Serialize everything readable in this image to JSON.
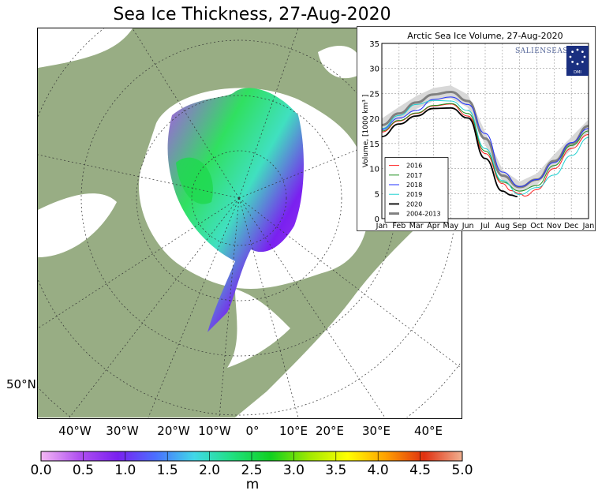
{
  "title": "Sea Ice Thickness, 27-Aug-2020",
  "map": {
    "longitude_labels": [
      "40°W",
      "30°W",
      "20°W",
      "10°W",
      "0°",
      "10°E",
      "20°E",
      "30°E",
      "40°E"
    ],
    "latitude_label": "50°N",
    "colors": {
      "land": "#98ad84",
      "ocean": "#ffffff"
    }
  },
  "colorbar": {
    "ticks": [
      "0.0",
      "0.5",
      "1.0",
      "1.5",
      "2.0",
      "2.5",
      "3.0",
      "3.5",
      "4.0",
      "4.5",
      "5.0"
    ],
    "unit": "m",
    "range": [
      0,
      5
    ],
    "stops": [
      "#f4b8f4",
      "#b050f0",
      "#7a20f0",
      "#4a70ff",
      "#40d8e8",
      "#20e080",
      "#10d020",
      "#a0e800",
      "#ffff00",
      "#ffa000",
      "#e03010",
      "#f0b090"
    ]
  },
  "logos": {
    "salienseas": "SALIENSEAS",
    "dmi": "DMI"
  },
  "chart_data": {
    "type": "line",
    "title": "Arctic Sea Ice Volume, 27-Aug-2020",
    "ylabel": "Volume, [1000 km³ ]",
    "xlabel": "",
    "ylim": [
      0,
      35
    ],
    "yticks": [
      "0",
      "5",
      "10",
      "15",
      "20",
      "25",
      "30",
      "35"
    ],
    "categories": [
      "Jan",
      "Feb",
      "Mar",
      "Apr",
      "May",
      "Jun",
      "Jul",
      "Aug",
      "Sep",
      "Oct",
      "Nov",
      "Dec",
      "Jan"
    ],
    "grid": true,
    "legend_position": "bottom-left",
    "x_month_positions": [
      0,
      1,
      2,
      3,
      4,
      5,
      6,
      7,
      8,
      9,
      10,
      11,
      12
    ],
    "band_2004_2013": {
      "lower": [
        17.4,
        19.7,
        21.9,
        23.5,
        24.0,
        22.2,
        14.7,
        7.4,
        5.2,
        6.7,
        10.3,
        13.8,
        17.3
      ],
      "upper": [
        20.0,
        22.3,
        24.5,
        26.1,
        26.6,
        24.8,
        17.3,
        9.8,
        7.4,
        9.0,
        12.8,
        16.3,
        19.8
      ]
    },
    "series": [
      {
        "name": "2016",
        "color": "#ff2020",
        "width": 1,
        "x": [
          0,
          1,
          2,
          3,
          4,
          5,
          6,
          7,
          7.5,
          8,
          8.3,
          9,
          10,
          11,
          12
        ],
        "values": [
          17.3,
          19.5,
          21,
          22.5,
          22.9,
          20.5,
          13,
          7,
          5.6,
          5,
          4.5,
          5.8,
          10,
          14,
          16.8
        ]
      },
      {
        "name": "2017",
        "color": "#209020",
        "width": 1,
        "x": [
          0,
          1,
          2,
          3,
          4,
          5,
          6,
          7,
          8,
          9,
          10,
          11,
          12
        ],
        "values": [
          17.5,
          19.6,
          21.1,
          22.6,
          23,
          21,
          13.5,
          7.3,
          5.5,
          6.6,
          10.6,
          14.6,
          17.5
        ]
      },
      {
        "name": "2018",
        "color": "#2030ff",
        "width": 1,
        "x": [
          0,
          1,
          2,
          3,
          4,
          5,
          6,
          7,
          8,
          9,
          10,
          11,
          12
        ],
        "values": [
          17.8,
          20.1,
          21.6,
          23.8,
          24.3,
          22.8,
          17,
          9.3,
          6.4,
          7.8,
          11.2,
          15.2,
          18
        ]
      },
      {
        "name": "2019",
        "color": "#20d0d0",
        "width": 1,
        "x": [
          0,
          1,
          2,
          3,
          4,
          5,
          6,
          7,
          8,
          9,
          10,
          11,
          12
        ],
        "values": [
          18,
          20.6,
          22.8,
          23.6,
          23.5,
          21.6,
          14,
          7.6,
          4.8,
          6.2,
          8.7,
          12.6,
          16.2
        ]
      },
      {
        "name": "2020",
        "color": "#000000",
        "width": 1.8,
        "x": [
          0,
          1,
          2,
          3,
          4,
          5,
          6,
          7,
          7.5,
          7.87
        ],
        "values": [
          16.4,
          18.9,
          20.5,
          22,
          22.1,
          20.1,
          12,
          5.5,
          4.7,
          4.4
        ]
      },
      {
        "name": "2004-2013",
        "color": "#808080",
        "width": 3,
        "x": [
          0,
          1,
          2,
          3,
          4,
          5,
          6,
          7,
          8,
          9,
          10,
          11,
          12
        ],
        "values": [
          18.7,
          21,
          23.2,
          24.8,
          25.3,
          23.5,
          16,
          8.6,
          6.3,
          7.8,
          11.5,
          15,
          18.5
        ]
      }
    ]
  }
}
